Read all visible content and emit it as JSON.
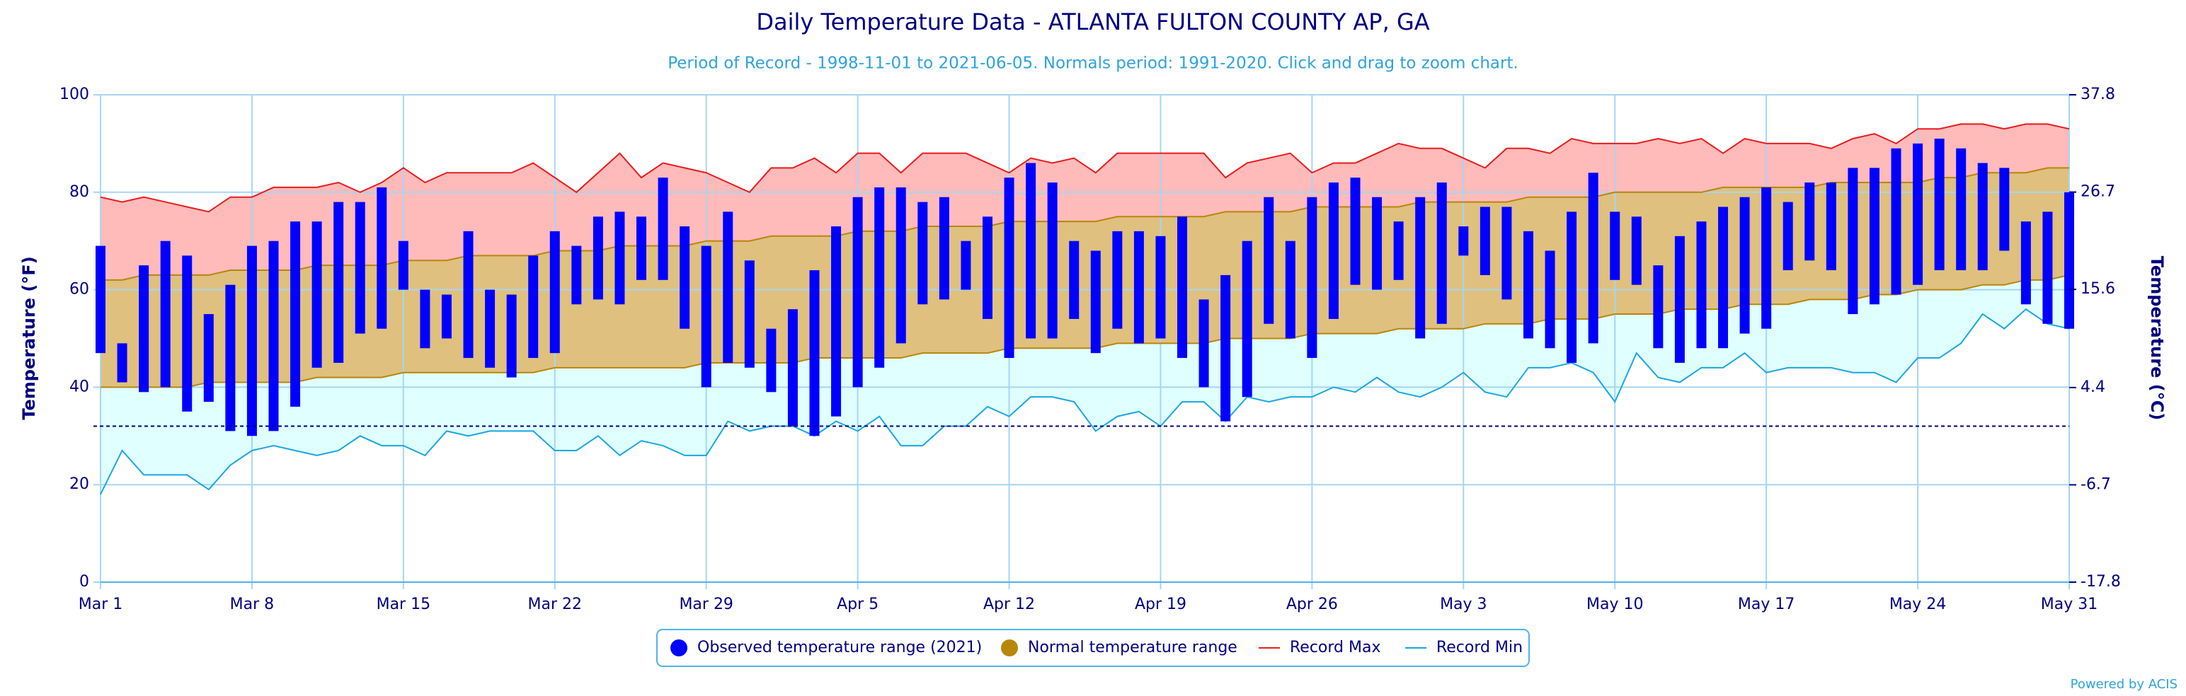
{
  "chart_data": {
    "type": "temperature-range",
    "title": "Daily Temperature Data - ATLANTA FULTON COUNTY AP, GA",
    "subtitle": "Period of Record - 1998-11-01 to 2021-06-05. Normals period: 1991-2020. Click and drag to zoom chart.",
    "y_label": "Temperature (°F)",
    "y2_label": "Temperature (°C)",
    "credit": "Powered by ACIS",
    "categories": [
      "Mar 1",
      null,
      null,
      null,
      null,
      null,
      null,
      "Mar 8",
      null,
      null,
      null,
      null,
      null,
      null,
      "Mar 15",
      null,
      null,
      null,
      null,
      null,
      null,
      "Mar 22",
      null,
      null,
      null,
      null,
      null,
      null,
      "Mar 29",
      null,
      null,
      null,
      null,
      null,
      null,
      "Apr 5",
      null,
      null,
      null,
      null,
      null,
      null,
      "Apr 12",
      null,
      null,
      null,
      null,
      null,
      null,
      "Apr 19",
      null,
      null,
      null,
      null,
      null,
      null,
      "Apr 26",
      null,
      null,
      null,
      null,
      null,
      null,
      "May 3",
      null,
      null,
      null,
      null,
      null,
      null,
      "May 10",
      null,
      null,
      null,
      null,
      null,
      null,
      "May 17",
      null,
      null,
      null,
      null,
      null,
      null,
      "May 24",
      null,
      null,
      null,
      null,
      null,
      null,
      "May 31"
    ],
    "ylim": [
      0,
      100
    ],
    "yticks": [
      0,
      20,
      40,
      60,
      80,
      100
    ],
    "y2lim": [
      -17.8,
      37.8
    ],
    "y2ticks": [
      -17.8,
      -6.7,
      4.4,
      15.6,
      26.7,
      37.8
    ],
    "freezing_line": 32,
    "grid": true,
    "legend": "bottom",
    "series": [
      {
        "name": "Observed temperature range (2021)",
        "kind": "range-bar",
        "color": "#0000ff",
        "low": [
          47,
          41,
          39,
          40,
          35,
          37,
          31,
          30,
          31,
          36,
          44,
          45,
          51,
          52,
          60,
          48,
          50,
          46,
          44,
          42,
          46,
          47,
          57,
          58,
          57,
          62,
          62,
          52,
          40,
          45,
          44,
          39,
          32,
          30,
          34,
          40,
          44,
          49,
          57,
          58,
          60,
          54,
          46,
          50,
          50,
          54,
          47,
          52,
          49,
          50,
          46,
          40,
          33,
          38,
          53,
          50,
          46,
          54,
          61,
          60,
          62,
          50,
          53,
          67,
          63,
          58,
          50,
          48,
          45,
          49,
          62,
          61,
          48,
          45,
          48,
          48,
          51,
          52,
          64,
          66,
          64,
          55,
          57,
          59,
          61,
          64,
          64,
          64,
          68,
          57,
          53,
          52
        ],
        "high": [
          69,
          49,
          65,
          70,
          67,
          55,
          61,
          69,
          70,
          74,
          74,
          78,
          78,
          81,
          70,
          60,
          59,
          72,
          60,
          59,
          67,
          72,
          69,
          75,
          76,
          75,
          83,
          73,
          69,
          76,
          66,
          52,
          56,
          64,
          73,
          79,
          81,
          81,
          78,
          79,
          70,
          75,
          83,
          86,
          82,
          70,
          68,
          72,
          72,
          71,
          75,
          58,
          63,
          70,
          79,
          70,
          79,
          82,
          83,
          79,
          74,
          79,
          82,
          73,
          77,
          77,
          72,
          68,
          76,
          84,
          76,
          75,
          65,
          71,
          74,
          77,
          79,
          81,
          78,
          82,
          82,
          85,
          85,
          89,
          90,
          91,
          89,
          86,
          85,
          74,
          76,
          80
        ]
      },
      {
        "name": "Normal temperature range",
        "kind": "range-area",
        "color": "#b8860b",
        "fill": "#dfc07e",
        "low": [
          40,
          40,
          40,
          40,
          40,
          41,
          41,
          41,
          41,
          41,
          42,
          42,
          42,
          42,
          43,
          43,
          43,
          43,
          43,
          43,
          43,
          44,
          44,
          44,
          44,
          44,
          44,
          44,
          45,
          45,
          45,
          45,
          45,
          46,
          46,
          46,
          46,
          46,
          47,
          47,
          47,
          47,
          48,
          48,
          48,
          48,
          48,
          49,
          49,
          49,
          49,
          49,
          50,
          50,
          50,
          50,
          51,
          51,
          51,
          51,
          52,
          52,
          52,
          52,
          53,
          53,
          53,
          54,
          54,
          54,
          55,
          55,
          55,
          56,
          56,
          56,
          57,
          57,
          57,
          58,
          58,
          58,
          59,
          59,
          60,
          60,
          60,
          61,
          61,
          62,
          62,
          63
        ],
        "high": [
          62,
          62,
          63,
          63,
          63,
          63,
          64,
          64,
          64,
          64,
          65,
          65,
          65,
          65,
          66,
          66,
          66,
          67,
          67,
          67,
          67,
          68,
          68,
          68,
          69,
          69,
          69,
          69,
          70,
          70,
          70,
          71,
          71,
          71,
          71,
          72,
          72,
          72,
          73,
          73,
          73,
          73,
          74,
          74,
          74,
          74,
          74,
          75,
          75,
          75,
          75,
          75,
          76,
          76,
          76,
          76,
          77,
          77,
          77,
          77,
          77,
          78,
          78,
          78,
          78,
          78,
          79,
          79,
          79,
          79,
          80,
          80,
          80,
          80,
          80,
          81,
          81,
          81,
          81,
          81,
          82,
          82,
          82,
          82,
          82,
          83,
          83,
          84,
          84,
          84,
          85,
          85
        ]
      },
      {
        "name": "Record Max",
        "kind": "line",
        "color": "#e81c1c",
        "fill": "#ffbaba",
        "values": [
          79,
          78,
          79,
          78,
          77,
          76,
          79,
          79,
          81,
          81,
          81,
          82,
          80,
          82,
          85,
          82,
          84,
          84,
          84,
          84,
          86,
          83,
          80,
          84,
          88,
          83,
          86,
          85,
          84,
          82,
          80,
          85,
          85,
          87,
          84,
          88,
          88,
          84,
          88,
          88,
          88,
          86,
          84,
          87,
          86,
          87,
          84,
          88,
          88,
          88,
          88,
          88,
          83,
          86,
          87,
          88,
          84,
          86,
          86,
          88,
          90,
          89,
          89,
          87,
          85,
          89,
          89,
          88,
          91,
          90,
          90,
          90,
          91,
          90,
          91,
          88,
          91,
          90,
          90,
          90,
          89,
          91,
          92,
          90,
          93,
          93,
          94,
          94,
          93,
          94,
          94,
          93
        ]
      },
      {
        "name": "Record Min",
        "kind": "line",
        "color": "#1aa7e0",
        "fill": "#e0ffff",
        "values": [
          18,
          27,
          22,
          22,
          22,
          19,
          24,
          27,
          28,
          27,
          26,
          27,
          30,
          28,
          28,
          26,
          31,
          30,
          31,
          31,
          31,
          27,
          27,
          30,
          26,
          29,
          28,
          26,
          26,
          33,
          31,
          32,
          32,
          30,
          33,
          31,
          34,
          28,
          28,
          32,
          32,
          36,
          34,
          38,
          38,
          37,
          31,
          34,
          35,
          32,
          37,
          37,
          33,
          38,
          37,
          38,
          38,
          40,
          39,
          42,
          39,
          38,
          40,
          43,
          39,
          38,
          44,
          44,
          45,
          43,
          37,
          47,
          42,
          41,
          44,
          44,
          47,
          43,
          44,
          44,
          44,
          43,
          43,
          41,
          46,
          46,
          49,
          55,
          52,
          56,
          53,
          52
        ]
      }
    ]
  }
}
